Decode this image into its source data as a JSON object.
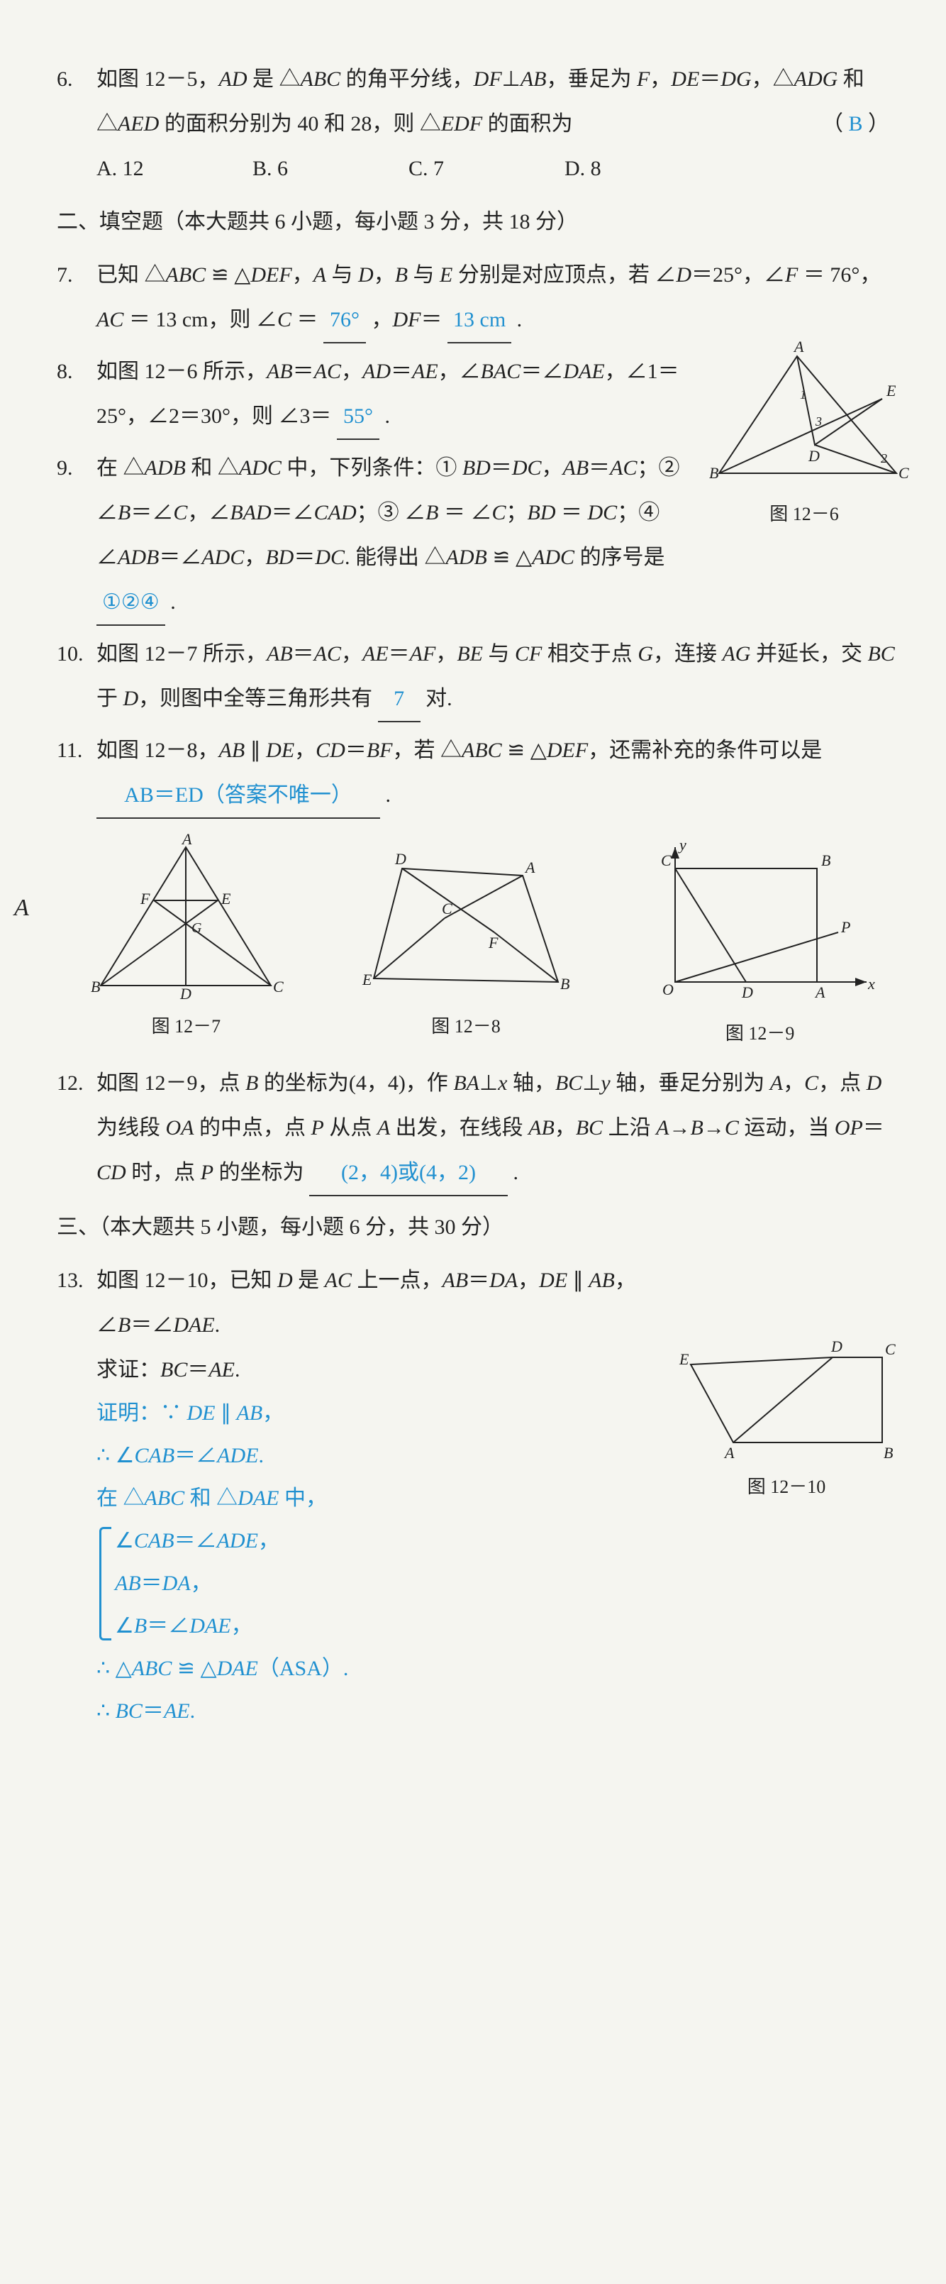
{
  "q6": {
    "num": "6.",
    "text": "如图 12－5，<i>AD</i> 是 △<i>ABC</i> 的角平分线，<i>DF</i>⊥<i>AB</i>，垂足为 <i>F</i>，<i>DE</i>＝<i>DG</i>，△<i>ADG</i> 和 △<i>AED</i> 的面积分别为 40 和 28，则 △<i>EDF</i> 的面积为",
    "paren_l": "（",
    "paren_r": "）",
    "ans": "B",
    "opts": {
      "a": "A. 12",
      "b": "B. 6",
      "c": "C. 7",
      "d": "D. 8"
    }
  },
  "sec2": {
    "title": "二、填空题（本大题共 6 小题，每小题 3 分，共 18 分）"
  },
  "q7": {
    "num": "7.",
    "part1": "已知 △<i>ABC</i> ≌ △<i>DEF</i>，<i>A</i> 与 <i>D</i>，<i>B</i> 与 <i>E</i> 分别是对应顶点，若 ∠<i>D</i>＝25°，∠<i>F</i> ＝ 76°，<i>AC</i> ＝ 13 cm，则 ∠<i>C</i> ＝ ",
    "ans1": "76°",
    "mid": "，<i>DF</i>＝ ",
    "ans2": "13 cm",
    "tail": "."
  },
  "q8": {
    "num": "8.",
    "text": "如图 12－6 所示，<i>AB</i>＝<i>AC</i>，<i>AD</i>＝<i>AE</i>，∠<i>BAC</i>＝∠<i>DAE</i>，∠1＝25°，∠2＝30°，则 ∠3＝ ",
    "ans": "55°",
    "tail": "."
  },
  "q9": {
    "num": "9.",
    "text": "在 △<i>ADB</i> 和 △<i>ADC</i> 中，下列条件：① <i>BD</i>＝<i>DC</i>，<i>AB</i>＝<i>AC</i>；② ∠<i>B</i>＝∠<i>C</i>，∠<i>BAD</i>＝∠<i>CAD</i>；③ ∠<i>B</i> ＝ ∠<i>C</i>；<i>BD</i> ＝ <i>DC</i>；④ ∠<i>ADB</i>＝∠<i>ADC</i>，<i>BD</i>＝<i>DC</i>. 能得出 △<i>ADB</i> ≌ △<i>ADC</i> 的序号是 ",
    "ans": "①②④",
    "tail": "."
  },
  "fig6": {
    "label": "图 12－6"
  },
  "q10": {
    "num": "10.",
    "text": "如图 12－7 所示，<i>AB</i>＝<i>AC</i>，<i>AE</i>＝<i>AF</i>，<i>BE</i> 与 <i>CF</i> 相交于点 <i>G</i>，连接 <i>AG</i> 并延长，交 <i>BC</i> 于 <i>D</i>，则图中全等三角形共有 ",
    "ans": "7",
    "tail": " 对."
  },
  "q11": {
    "num": "11.",
    "text": "如图 12－8，<i>AB</i> ∥ <i>DE</i>，<i>CD</i>＝<i>BF</i>，若 △<i>ABC</i> ≌ △<i>DEF</i>，还需补充的条件可以是 ",
    "ans": "AB＝ED（答案不唯一）",
    "tail": "."
  },
  "stray": "A",
  "fig7": {
    "label": "图 12－7"
  },
  "fig8": {
    "label": "图 12－8"
  },
  "fig9": {
    "label": "图 12－9"
  },
  "q12": {
    "num": "12.",
    "text": "如图 12－9，点 <i>B</i> 的坐标为(4，4)，作 <i>BA</i>⊥<i>x</i> 轴，<i>BC</i>⊥<i>y</i> 轴，垂足分别为 <i>A</i>，<i>C</i>，点 <i>D</i> 为线段 <i>OA</i> 的中点，点 <i>P</i> 从点 <i>A</i> 出发，在线段 <i>AB</i>，<i>BC</i> 上沿 <i>A</i>→<i>B</i>→<i>C</i> 运动，当 <i>OP</i>＝<i>CD</i> 时，点 <i>P</i> 的坐标为 ",
    "ans": "(2，4)或(4，2)",
    "tail": "."
  },
  "sec3": {
    "title": "三、（本大题共 5 小题，每小题 6 分，共 30 分）"
  },
  "q13": {
    "num": "13.",
    "text": "如图 12－10，已知 <i>D</i> 是 <i>AC</i> 上一点，<i>AB</i>＝<i>DA</i>，<i>DE</i> ∥ <i>AB</i>，∠<i>B</i>＝∠<i>DAE</i>.",
    "prove_label": "求证：<i>BC</i>＝<i>AE</i>.",
    "proof": {
      "l1": "证明：∵ <i>DE</i> ∥ <i>AB</i>，",
      "l2": "∴ ∠<i>CAB</i>＝∠<i>ADE</i>.",
      "l3": "在 △<i>ABC</i> 和 △<i>DAE</i> 中，",
      "b1": "∠<i>CAB</i>＝∠<i>ADE</i>，",
      "b2": "<i>AB</i>＝<i>DA</i>，",
      "b3": "∠<i>B</i>＝∠<i>DAE</i>，",
      "l4": "∴ △<i>ABC</i> ≌ △<i>DAE</i>（ASA）.",
      "l5": "∴ <i>BC</i>＝<i>AE</i>."
    }
  },
  "fig10": {
    "label": "图 12－10"
  },
  "svg_style": {
    "stroke": "#222",
    "stroke_width": 2,
    "font": "italic 22px Times New Roman"
  }
}
